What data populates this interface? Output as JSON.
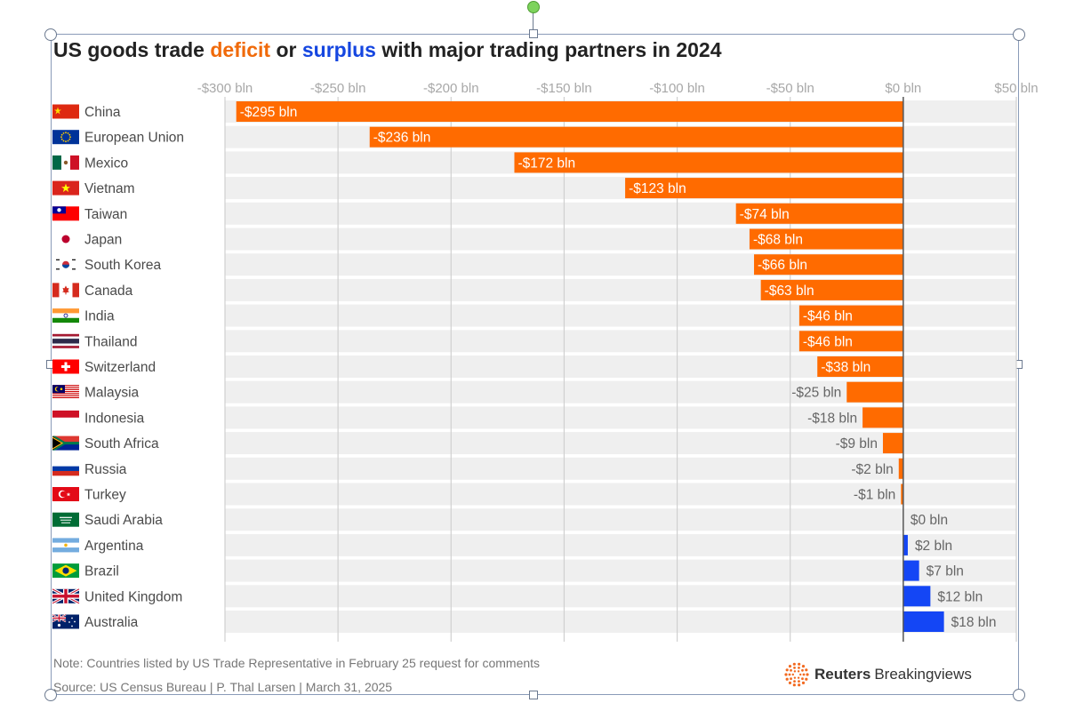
{
  "title": {
    "prefix": "US goods trade ",
    "deficit_word": "deficit",
    "middle": " or ",
    "surplus_word": "surplus",
    "suffix": " with major trading partners in 2024"
  },
  "chart_data": {
    "type": "bar",
    "orientation": "horizontal",
    "title": "US goods trade deficit or surplus with major trading partners in 2024",
    "xlabel": "",
    "ylabel": "",
    "xlim": [
      -300,
      50
    ],
    "ticks": [
      {
        "value": -300,
        "label": "-$300 bln"
      },
      {
        "value": -250,
        "label": "-$250 bln"
      },
      {
        "value": -200,
        "label": "-$200 bln"
      },
      {
        "value": -150,
        "label": "-$150 bln"
      },
      {
        "value": -100,
        "label": "-$100 bln"
      },
      {
        "value": -50,
        "label": "-$50 bln"
      },
      {
        "value": 0,
        "label": "$0 bln"
      },
      {
        "value": 50,
        "label": "$50 bln"
      }
    ],
    "categories": [
      "China",
      "European Union",
      "Mexico",
      "Vietnam",
      "Taiwan",
      "Japan",
      "South Korea",
      "Canada",
      "India",
      "Thailand",
      "Switzerland",
      "Malaysia",
      "Indonesia",
      "South Africa",
      "Russia",
      "Turkey",
      "Saudi Arabia",
      "Argentina",
      "Brazil",
      "United Kingdom",
      "Australia"
    ],
    "values": [
      -295,
      -236,
      -172,
      -123,
      -74,
      -68,
      -66,
      -63,
      -46,
      -46,
      -38,
      -25,
      -18,
      -9,
      -2,
      -1,
      0,
      2,
      7,
      12,
      18
    ],
    "value_labels": [
      "-$295 bln",
      "-$236 bln",
      "-$172 bln",
      "-$123 bln",
      "-$74 bln",
      "-$68 bln",
      "-$66 bln",
      "-$63 bln",
      "-$46 bln",
      "-$46 bln",
      "-$38 bln",
      "-$25 bln",
      "-$18 bln",
      "-$9 bln",
      "-$2 bln",
      "-$1 bln",
      "$0 bln",
      "$2 bln",
      "$7 bln",
      "$12 bln",
      "$18 bln"
    ],
    "flag_icons": [
      "china-flag-icon",
      "eu-flag-icon",
      "mexico-flag-icon",
      "vietnam-flag-icon",
      "taiwan-flag-icon",
      "japan-flag-icon",
      "south-korea-flag-icon",
      "canada-flag-icon",
      "india-flag-icon",
      "thailand-flag-icon",
      "switzerland-flag-icon",
      "malaysia-flag-icon",
      "indonesia-flag-icon",
      "south-africa-flag-icon",
      "russia-flag-icon",
      "turkey-flag-icon",
      "saudi-arabia-flag-icon",
      "argentina-flag-icon",
      "brazil-flag-icon",
      "uk-flag-icon",
      "australia-flag-icon"
    ],
    "colors": {
      "deficit": "#ff6b00",
      "surplus": "#1446f5",
      "row_band": "#efefef",
      "grid": "#d0d0d0",
      "zero_line": "#555555"
    }
  },
  "footer": {
    "note": "Note: Countries listed by US Trade Representative in February 25 request for comments",
    "source": "Source: US Census Bureau | P. Thal Larsen | March 31, 2025",
    "brand_reuters": "Reuters",
    "brand_breakingviews": "Breakingviews"
  }
}
